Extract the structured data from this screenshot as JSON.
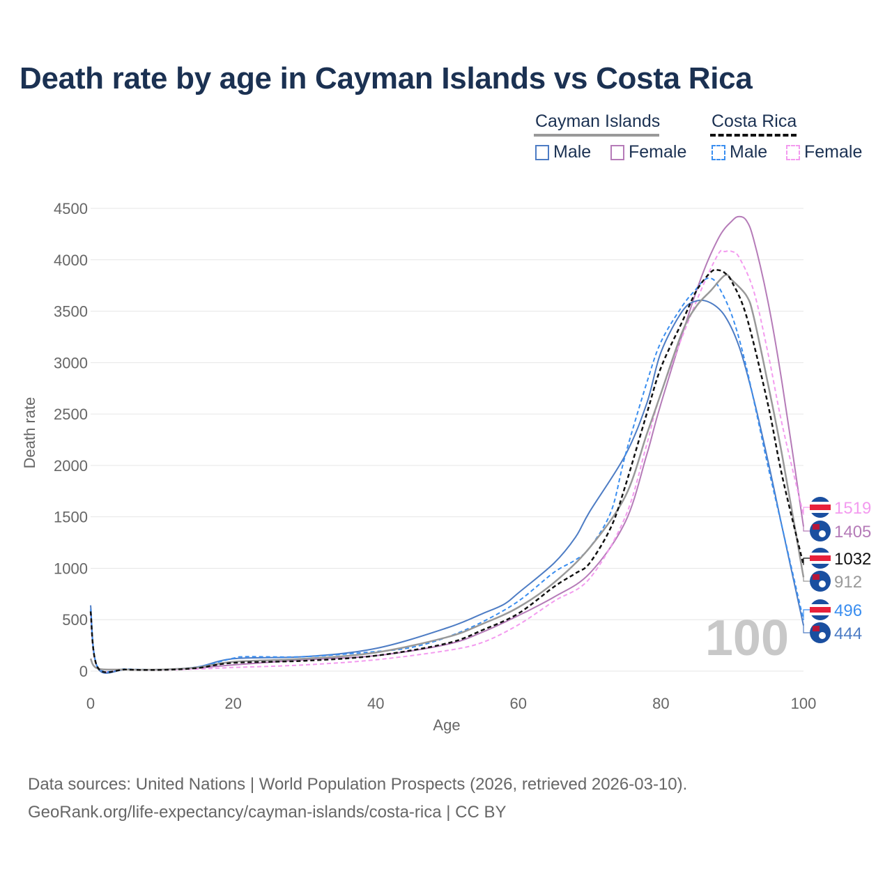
{
  "title": "Death rate by age in Cayman Islands vs Costa Rica",
  "legend": {
    "countries": [
      {
        "name": "Cayman Islands",
        "male": "Male",
        "female": "Female"
      },
      {
        "name": "Costa Rica",
        "male": "Male",
        "female": "Female"
      }
    ]
  },
  "colors": {
    "cayman_male": "#4d7cc4",
    "cayman_female": "#b57bb8",
    "costa_male": "#3a8ef0",
    "costa_female": "#f39bef",
    "cayman_total": "#999999",
    "costa_total": "#111111",
    "age_watermark": "#c8c8c8"
  },
  "footer": {
    "line1": "Data sources: United Nations | World Population Prospects (2026, retrieved 2026-03-10).",
    "line2": "GeoRank.org/life-expectancy/cayman-islands/costa-rica | CC BY"
  },
  "chart_data": {
    "type": "line",
    "title": "Death rate by age in Cayman Islands vs Costa Rica",
    "xlabel": "Age",
    "ylabel": "Death rate",
    "xlim": [
      0,
      100
    ],
    "ylim": [
      0,
      4500
    ],
    "xticks": [
      0,
      20,
      40,
      60,
      80,
      100
    ],
    "yticks": [
      0,
      500,
      1000,
      1500,
      2000,
      2500,
      3000,
      3500,
      4000,
      4500
    ],
    "current_age_label": "100",
    "series": [
      {
        "key": "cayman_female",
        "name": "Cayman Islands Female",
        "dashed": false,
        "end_label": "1405",
        "x": [
          0,
          1,
          5,
          10,
          15,
          20,
          30,
          40,
          50,
          55,
          60,
          65,
          70,
          75,
          78,
          80,
          85,
          88,
          90,
          91,
          92,
          93,
          95,
          97,
          100
        ],
        "y": [
          120,
          25,
          15,
          15,
          30,
          60,
          110,
          150,
          260,
          380,
          540,
          720,
          950,
          1450,
          2100,
          2600,
          3700,
          4200,
          4380,
          4420,
          4380,
          4200,
          3600,
          2800,
          1405
        ]
      },
      {
        "key": "costa_female",
        "name": "Costa Rica Female",
        "dashed": false,
        "end_label": "1519",
        "x": [
          0,
          1,
          5,
          10,
          15,
          20,
          30,
          40,
          50,
          55,
          60,
          65,
          70,
          75,
          78,
          80,
          85,
          88,
          89,
          90,
          91,
          93,
          95,
          97,
          100
        ],
        "y": [
          560,
          35,
          15,
          12,
          20,
          35,
          60,
          110,
          200,
          280,
          450,
          680,
          900,
          1500,
          2200,
          2700,
          3600,
          4050,
          4080,
          4080,
          4020,
          3700,
          3100,
          2400,
          1519
        ]
      },
      {
        "key": "cayman_male",
        "name": "Cayman Islands Male",
        "dashed": false,
        "end_label": "444",
        "x": [
          0,
          1,
          5,
          10,
          15,
          20,
          30,
          40,
          50,
          55,
          58,
          60,
          65,
          68,
          70,
          75,
          78,
          80,
          83,
          85,
          87,
          89,
          91,
          93,
          95,
          97,
          100
        ],
        "y": [
          640,
          30,
          15,
          15,
          40,
          120,
          140,
          220,
          420,
          560,
          650,
          760,
          1050,
          1300,
          1550,
          2100,
          2600,
          3100,
          3500,
          3600,
          3580,
          3450,
          3150,
          2650,
          2050,
          1400,
          444
        ]
      },
      {
        "key": "costa_male",
        "name": "Costa Rica Male",
        "dashed": true,
        "end_label": "496",
        "x": [
          0,
          1,
          5,
          10,
          15,
          20,
          22,
          30,
          40,
          45,
          50,
          55,
          60,
          65,
          68,
          70,
          73,
          75,
          78,
          80,
          83,
          85,
          86,
          87,
          88,
          90,
          92,
          95,
          97,
          100
        ],
        "y": [
          600,
          40,
          20,
          15,
          40,
          125,
          140,
          140,
          190,
          230,
          330,
          480,
          680,
          960,
          1080,
          1200,
          1550,
          2100,
          2800,
          3200,
          3550,
          3720,
          3800,
          3820,
          3750,
          3450,
          2950,
          2000,
          1400,
          496
        ]
      },
      {
        "key": "cayman_total",
        "name": "Cayman Islands Total",
        "dashed": false,
        "end_label": "912",
        "x": [
          0,
          1,
          5,
          10,
          15,
          20,
          30,
          40,
          50,
          55,
          60,
          65,
          70,
          75,
          78,
          80,
          83,
          85,
          87,
          89,
          90,
          92,
          93,
          95,
          97,
          100
        ],
        "y": [
          120,
          25,
          15,
          15,
          35,
          90,
          120,
          180,
          330,
          460,
          620,
          860,
          1200,
          1700,
          2300,
          2700,
          3300,
          3550,
          3700,
          3850,
          3800,
          3650,
          3450,
          2800,
          2100,
          912
        ]
      },
      {
        "key": "costa_total",
        "name": "Costa Rica Total",
        "dashed": true,
        "end_label": "1032",
        "x": [
          0,
          1,
          5,
          10,
          15,
          20,
          30,
          40,
          50,
          55,
          60,
          65,
          68,
          70,
          73,
          75,
          78,
          80,
          83,
          85,
          87,
          88,
          89,
          90,
          92,
          95,
          97,
          100
        ],
        "y": [
          580,
          35,
          15,
          12,
          30,
          80,
          100,
          150,
          270,
          400,
          560,
          820,
          950,
          1050,
          1400,
          1800,
          2500,
          2950,
          3400,
          3700,
          3880,
          3900,
          3870,
          3780,
          3450,
          2600,
          1900,
          1032
        ]
      }
    ]
  }
}
